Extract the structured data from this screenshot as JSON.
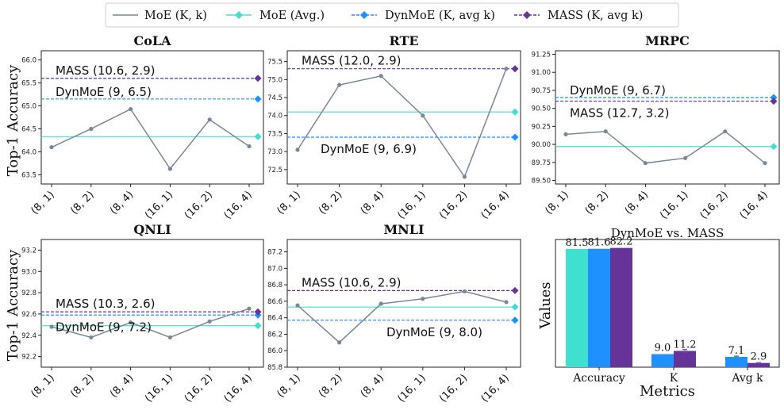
{
  "legend": {
    "moe_kk": "MoE (K, k)",
    "moe_avg": "MoE (Avg.)",
    "dynmoe": "DynMoE (K, avg k)",
    "mass": "MASS (K, avg k)"
  },
  "y_axis_label": "Top-1 Accuracy",
  "colors": {
    "moe_line": "#778899",
    "moe_avg": "#40e0d0",
    "dynmoe": "#1e90ff",
    "mass": "#663399"
  },
  "chart_data": [
    {
      "type": "line",
      "title": "CoLA",
      "categories": [
        "(8, 1)",
        "(8, 2)",
        "(8, 4)",
        "(16, 1)",
        "(16, 2)",
        "(16, 4)"
      ],
      "moe": [
        64.1,
        64.5,
        64.93,
        63.63,
        64.7,
        64.12
      ],
      "moe_avg": 64.33,
      "dynmoe": 65.15,
      "mass": 65.6,
      "ylim": [
        63.3,
        66.2
      ],
      "yticks": [
        "63.5",
        "64.0",
        "64.5",
        "65.0",
        "65.5",
        "66.0"
      ],
      "mass_label": "MASS (10.6, 2.9)",
      "dynmoe_label": "DynMoE (9, 6.5)"
    },
    {
      "type": "line",
      "title": "RTE",
      "categories": [
        "(8, 1)",
        "(8, 2)",
        "(8, 4)",
        "(16, 1)",
        "(16, 2)",
        "(16, 4)"
      ],
      "moe": [
        73.05,
        74.85,
        75.1,
        74.0,
        72.3,
        75.3
      ],
      "moe_avg": 74.1,
      "dynmoe": 73.4,
      "mass": 75.3,
      "ylim": [
        72.1,
        75.8
      ],
      "yticks": [
        "72.5",
        "73.0",
        "73.5",
        "74.0",
        "74.5",
        "75.0",
        "75.5"
      ],
      "mass_label": "MASS (12.0, 2.9)",
      "dynmoe_label": "DynMoE (9, 6.9)"
    },
    {
      "type": "line",
      "title": "MRPC",
      "categories": [
        "(8, 1)",
        "(8, 2)",
        "(8, 4)",
        "(16, 1)",
        "(16, 2)",
        "(16, 4)"
      ],
      "moe": [
        90.14,
        90.18,
        89.74,
        89.81,
        90.18,
        89.74
      ],
      "moe_avg": 89.97,
      "dynmoe": 90.65,
      "mass": 90.6,
      "ylim": [
        89.45,
        91.3
      ],
      "yticks": [
        "89.50",
        "89.75",
        "90.00",
        "90.25",
        "90.50",
        "90.75",
        "91.00",
        "91.25"
      ],
      "mass_label": "MASS (12.7, 3.2)",
      "dynmoe_label": "DynMoE (9, 6.7)"
    },
    {
      "type": "line",
      "title": "QNLI",
      "categories": [
        "(8, 1)",
        "(8, 2)",
        "(8, 4)",
        "(16, 1)",
        "(16, 2)",
        "(16, 4)"
      ],
      "moe": [
        92.48,
        92.38,
        92.52,
        92.38,
        92.53,
        92.65
      ],
      "moe_avg": 92.49,
      "dynmoe": 92.59,
      "mass": 92.62,
      "ylim": [
        92.1,
        93.3
      ],
      "yticks": [
        "92.2",
        "92.4",
        "92.6",
        "92.8",
        "93.0",
        "93.2"
      ],
      "mass_label": "MASS (10.3, 2.6)",
      "dynmoe_label": "DynMoE (9, 7.2)"
    },
    {
      "type": "line",
      "title": "MNLI",
      "categories": [
        "(8, 1)",
        "(8, 2)",
        "(8, 4)",
        "(16, 1)",
        "(16, 2)",
        "(16, 4)"
      ],
      "moe": [
        86.55,
        86.1,
        86.57,
        86.63,
        86.72,
        86.59
      ],
      "moe_avg": 86.53,
      "dynmoe": 86.37,
      "mass": 86.73,
      "ylim": [
        85.8,
        87.35
      ],
      "yticks": [
        "85.8",
        "86.0",
        "86.2",
        "86.4",
        "86.6",
        "86.8",
        "87.0",
        "87.2"
      ],
      "mass_label": "MASS (10.6, 2.9)",
      "dynmoe_label": "DynMoE (9, 8.0)"
    },
    {
      "type": "bar",
      "title": "DynMoE vs. MASS",
      "xlabel": "Metrics",
      "ylabel": "Values",
      "groups": [
        {
          "name": "Accuracy",
          "bars": [
            {
              "value": 81.5,
              "label": "81.5",
              "color": "#40e0d0",
              "err": 0
            },
            {
              "value": 81.6,
              "label": "81.6",
              "color": "#1e90ff",
              "err": 0
            },
            {
              "value": 82.2,
              "label": "82.2",
              "color": "#663399",
              "err": 0
            }
          ]
        },
        {
          "name": "K",
          "bars": [
            {
              "value": 9.0,
              "label": "9.0",
              "color": "#1e90ff",
              "err": 0
            },
            {
              "value": 11.2,
              "label": "11.2",
              "color": "#663399",
              "err": 1.0
            }
          ]
        },
        {
          "name": "Avg k",
          "bars": [
            {
              "value": 7.1,
              "label": "7.1",
              "color": "#1e90ff",
              "err": 0.5
            },
            {
              "value": 2.9,
              "label": "2.9",
              "color": "#663399",
              "err": 0.2
            }
          ]
        }
      ]
    }
  ]
}
